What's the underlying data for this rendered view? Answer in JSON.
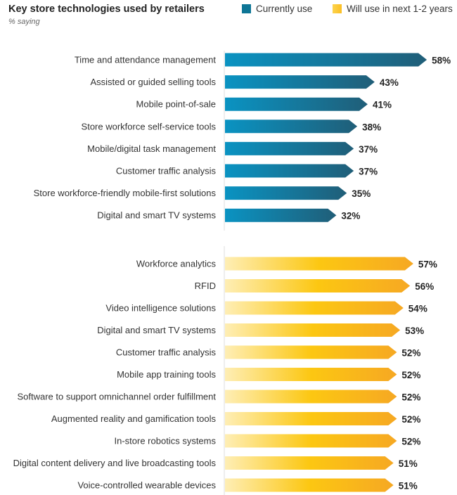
{
  "chart_data": {
    "type": "bar",
    "title": "Key store technologies used by retailers",
    "subtitle": "% saying",
    "unit": "%",
    "legend": [
      {
        "name": "Currently use",
        "color": "#0e7ea8"
      },
      {
        "name": "Will use in next 1-2 years",
        "color": "#fcc419"
      }
    ],
    "legend_placement": "top-right",
    "series": [
      {
        "name": "Currently use",
        "categories": [
          "Time and attendance management",
          "Assisted or guided selling tools",
          "Mobile point-of-sale",
          "Store workforce self-service tools",
          "Mobile/digital task management",
          "Customer traffic analysis",
          "Store workforce-friendly mobile-first solutions",
          "Digital and smart TV systems"
        ],
        "values": [
          58,
          43,
          41,
          38,
          37,
          37,
          35,
          32
        ]
      },
      {
        "name": "Will use in next 1-2 years",
        "categories": [
          "Workforce analytics",
          "RFID",
          "Video intelligence solutions",
          "Digital and smart TV systems",
          "Customer traffic analysis",
          "Mobile app training tools",
          "Software to support omnichannel order fulfillment",
          "Augmented reality and gamification tools",
          "In-store robotics systems",
          "Digital content delivery and live broadcasting tools",
          "Voice-controlled wearable devices"
        ],
        "values": [
          57,
          56,
          54,
          53,
          52,
          52,
          52,
          52,
          52,
          51,
          51
        ]
      }
    ]
  }
}
